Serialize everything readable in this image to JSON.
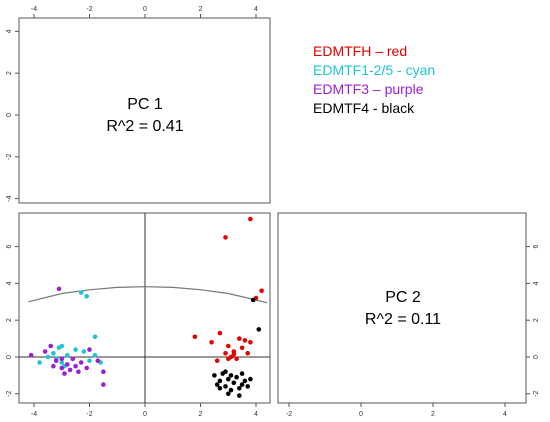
{
  "chart_data": {
    "type": "scatter",
    "layout": "pairs-matrix",
    "panels": {
      "top_left": {
        "label_line1": "PC 1",
        "label_line2": "R^2 = 0.41",
        "yticks": [
          "4",
          "2",
          "0",
          "-2",
          "-4"
        ]
      },
      "bottom_right": {
        "label_line1": "PC 2",
        "label_line2": "R^2 = 0.11",
        "xticks": [
          "-2",
          "0",
          "2",
          "4",
          "6"
        ],
        "yticks": [
          "6",
          "4",
          "2",
          "0",
          "-2"
        ]
      },
      "bottom_left": {
        "xticks": [
          "-4",
          "-2",
          "0",
          "2",
          "4"
        ],
        "yticks": [
          "6",
          "4",
          "2",
          "0",
          "-2"
        ],
        "xlim": [
          -4.2,
          4.4
        ],
        "ylim": [
          -2.3,
          7.7
        ],
        "vline_x": 0,
        "hline_y": 0,
        "curve": [
          [
            -4.2,
            3.0
          ],
          [
            -3,
            3.45
          ],
          [
            -2,
            3.65
          ],
          [
            -1,
            3.78
          ],
          [
            0,
            3.82
          ],
          [
            1,
            3.78
          ],
          [
            2,
            3.66
          ],
          [
            3,
            3.45
          ],
          [
            4,
            3.1
          ],
          [
            4.4,
            2.95
          ]
        ]
      }
    },
    "top_axis_ticks": [
      "-4",
      "-2",
      "0",
      "2",
      "4"
    ],
    "legend": [
      {
        "text": "EDMTFH – red",
        "color": "#e60000"
      },
      {
        "text": "EDMTF1-2/5 - cyan",
        "color": "#1fc4d6"
      },
      {
        "text": "EDMTF3 – purple",
        "color": "#9b1fd6"
      },
      {
        "text": "EDMTF4 - black",
        "color": "#000000"
      }
    ],
    "series": [
      {
        "color": "#e60000",
        "points": [
          [
            3.8,
            7.5
          ],
          [
            2.9,
            6.5
          ],
          [
            4.2,
            3.6
          ],
          [
            4.0,
            3.2
          ],
          [
            1.8,
            1.1
          ],
          [
            2.4,
            0.8
          ],
          [
            2.7,
            1.3
          ],
          [
            3.0,
            0.6
          ],
          [
            3.2,
            0.3
          ],
          [
            3.4,
            1.0
          ],
          [
            3.5,
            0.5
          ],
          [
            3.6,
            0.9
          ],
          [
            2.9,
            0.2
          ],
          [
            3.1,
            0.0
          ],
          [
            3.3,
            -0.1
          ],
          [
            3.7,
            0.2
          ],
          [
            3.8,
            0.8
          ],
          [
            2.6,
            -0.2
          ],
          [
            3.0,
            -0.1
          ],
          [
            3.2,
            0.15
          ]
        ]
      },
      {
        "color": "#1fc4d6",
        "points": [
          [
            -2.3,
            3.5
          ],
          [
            -2.1,
            3.3
          ],
          [
            -1.8,
            1.1
          ],
          [
            -3.0,
            0.6
          ],
          [
            -3.1,
            0.5
          ],
          [
            -3.3,
            0.2
          ],
          [
            -3.5,
            0.0
          ],
          [
            -2.8,
            0.1
          ],
          [
            -2.6,
            -0.1
          ],
          [
            -2.2,
            0.3
          ],
          [
            -2.0,
            -0.2
          ],
          [
            -1.8,
            0.1
          ],
          [
            -1.6,
            -0.3
          ],
          [
            -3.0,
            -0.3
          ],
          [
            -2.9,
            -0.5
          ],
          [
            -3.2,
            -0.1
          ],
          [
            -3.8,
            -0.3
          ],
          [
            -2.5,
            0.4
          ]
        ]
      },
      {
        "color": "#9b1fd6",
        "points": [
          [
            -3.1,
            3.7
          ],
          [
            -4.1,
            0.1
          ],
          [
            -3.6,
            0.3
          ],
          [
            -3.4,
            0.6
          ],
          [
            -3.2,
            -0.2
          ],
          [
            -3.0,
            -0.1
          ],
          [
            -3.0,
            -0.6
          ],
          [
            -2.8,
            -0.4
          ],
          [
            -2.7,
            -0.7
          ],
          [
            -2.5,
            -0.5
          ],
          [
            -2.4,
            -0.8
          ],
          [
            -2.3,
            -0.3
          ],
          [
            -2.1,
            -0.6
          ],
          [
            -2.0,
            0.4
          ],
          [
            -1.7,
            -0.2
          ],
          [
            -1.5,
            -0.8
          ],
          [
            -1.5,
            -1.5
          ],
          [
            -2.6,
            -0.1
          ],
          [
            -3.3,
            -0.5
          ],
          [
            -2.9,
            -0.9
          ]
        ]
      },
      {
        "color": "#000000",
        "points": [
          [
            3.9,
            3.1
          ],
          [
            4.1,
            1.5
          ],
          [
            2.5,
            -1.0
          ],
          [
            2.7,
            -1.3
          ],
          [
            2.8,
            -0.9
          ],
          [
            2.9,
            -1.6
          ],
          [
            3.0,
            -1.2
          ],
          [
            3.1,
            -1.8
          ],
          [
            3.2,
            -1.4
          ],
          [
            3.3,
            -1.1
          ],
          [
            3.4,
            -1.7
          ],
          [
            3.5,
            -0.9
          ],
          [
            3.6,
            -1.3
          ],
          [
            3.7,
            -1.6
          ],
          [
            2.7,
            -1.7
          ],
          [
            2.9,
            -0.8
          ],
          [
            3.0,
            -2.0
          ],
          [
            3.4,
            -2.1
          ],
          [
            3.8,
            -1.2
          ],
          [
            3.1,
            -1.0
          ],
          [
            2.6,
            -1.5
          ],
          [
            3.5,
            -1.5
          ]
        ]
      }
    ]
  }
}
